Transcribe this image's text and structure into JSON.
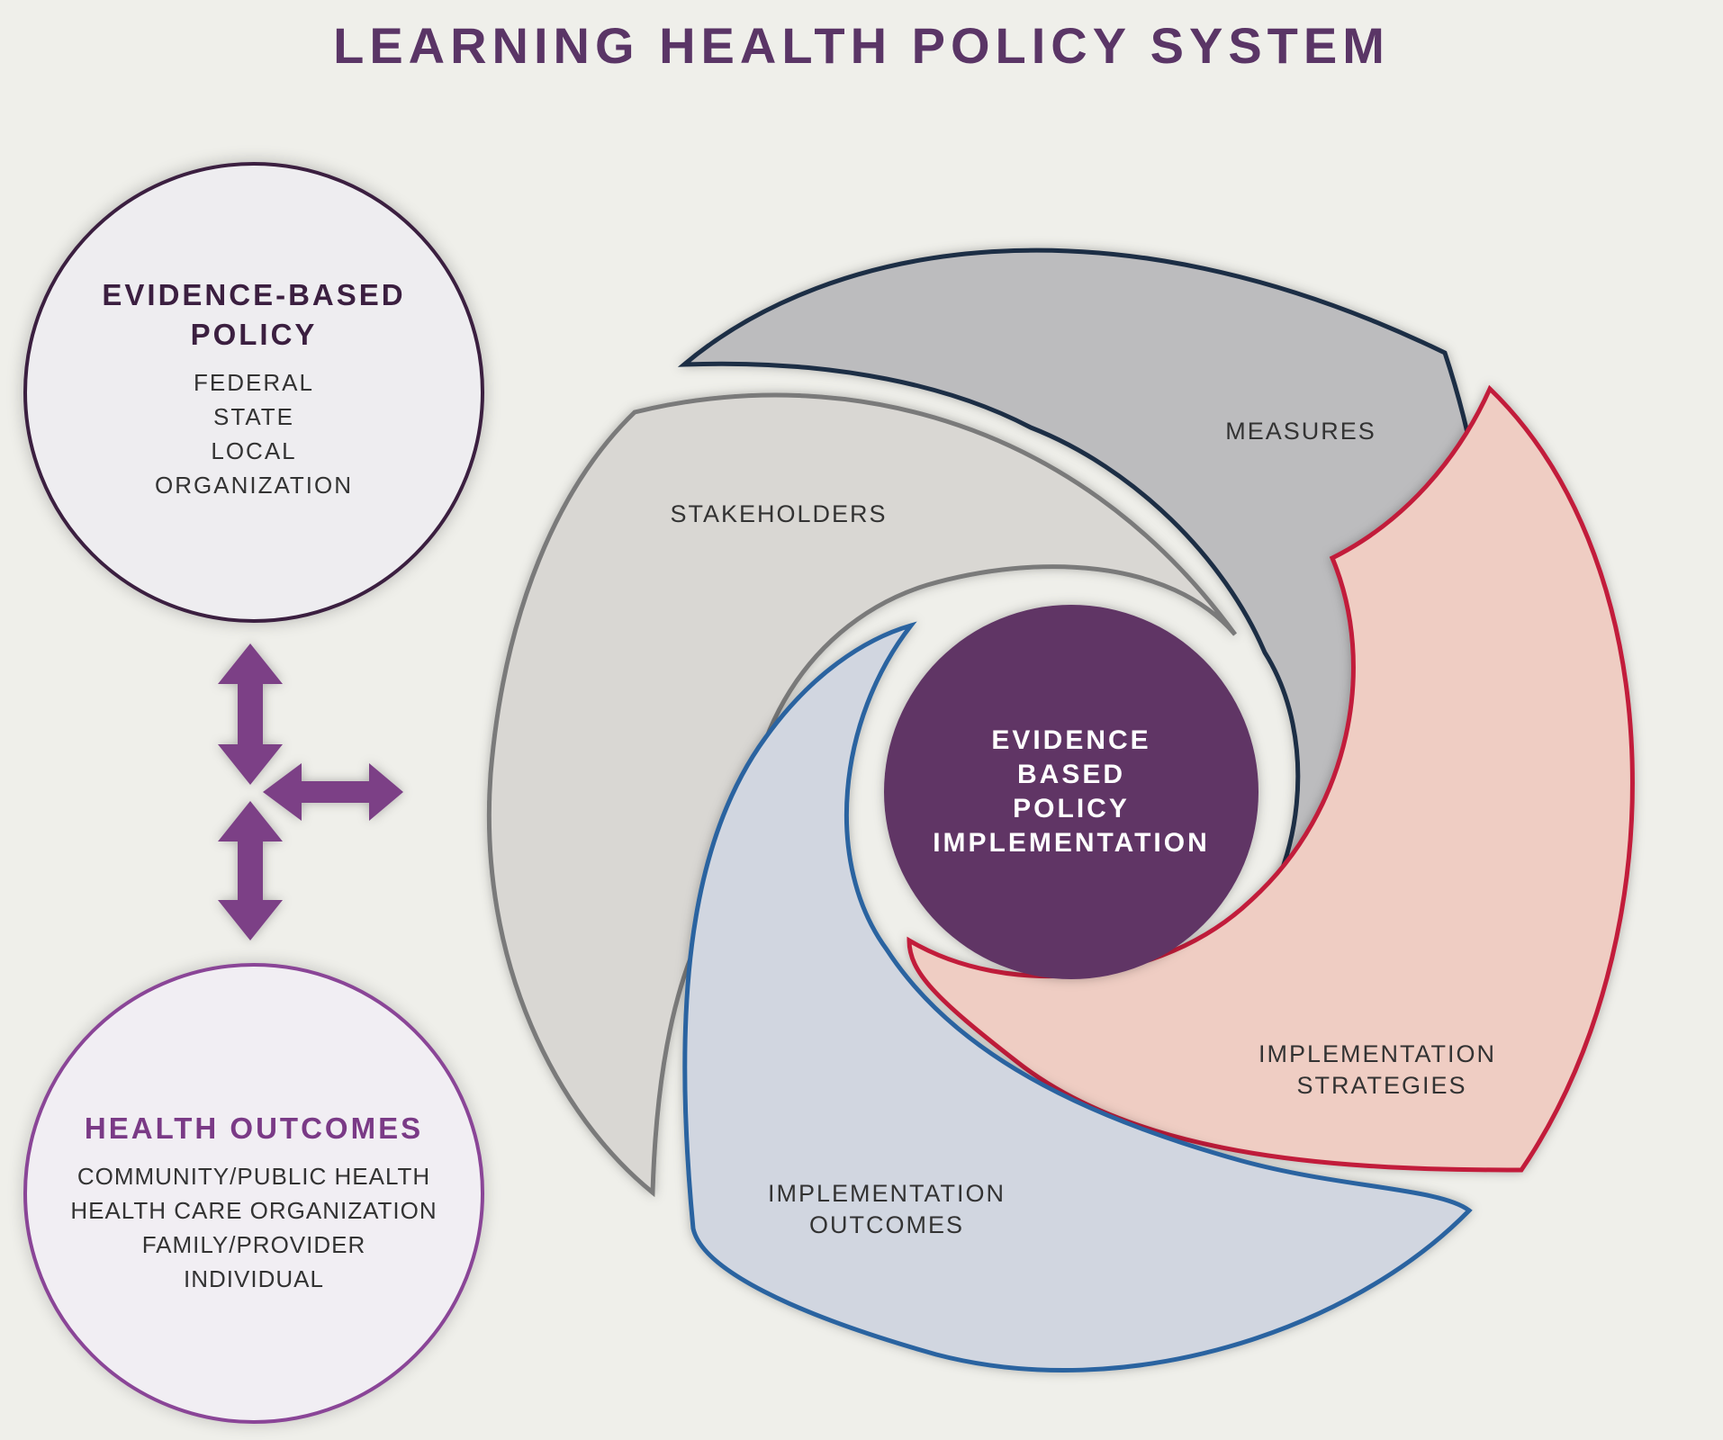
{
  "title": "LEARNING HEALTH POLICY SYSTEM",
  "policy_circle": {
    "heading": [
      "EVIDENCE-BASED",
      "POLICY"
    ],
    "levels": [
      "FEDERAL",
      "STATE",
      "LOCAL",
      "ORGANIZATION"
    ]
  },
  "outcomes_circle": {
    "heading": "HEALTH OUTCOMES",
    "levels": [
      "COMMUNITY/PUBLIC HEALTH",
      "HEALTH CARE ORGANIZATION",
      "FAMILY/PROVIDER",
      "INDIVIDUAL"
    ]
  },
  "cycle": {
    "segments": [
      {
        "label": [
          "STAKEHOLDERS"
        ],
        "fill": "#d9d7d3",
        "stroke": "#7a7a7a"
      },
      {
        "label": [
          "MEASURES"
        ],
        "fill": "#bcbcbe",
        "stroke": "#1f2d44"
      },
      {
        "label": [
          "IMPLEMENTATION",
          "STRATEGIES"
        ],
        "fill": "#efcdc3",
        "stroke": "#c21f3a"
      },
      {
        "label": [
          "IMPLEMENTATION",
          "OUTCOMES"
        ],
        "fill": "#d1d6e0",
        "stroke": "#2a64a0"
      }
    ],
    "center": {
      "label": [
        "EVIDENCE",
        "BASED",
        "POLICY",
        "IMPLEMENTATION"
      ],
      "fill": "#603565"
    }
  },
  "colors": {
    "title": "#5a3566",
    "arrow": "#7b3f86",
    "background": "#efefea"
  },
  "icons": {
    "connector": "three-way-arrow-icon"
  }
}
